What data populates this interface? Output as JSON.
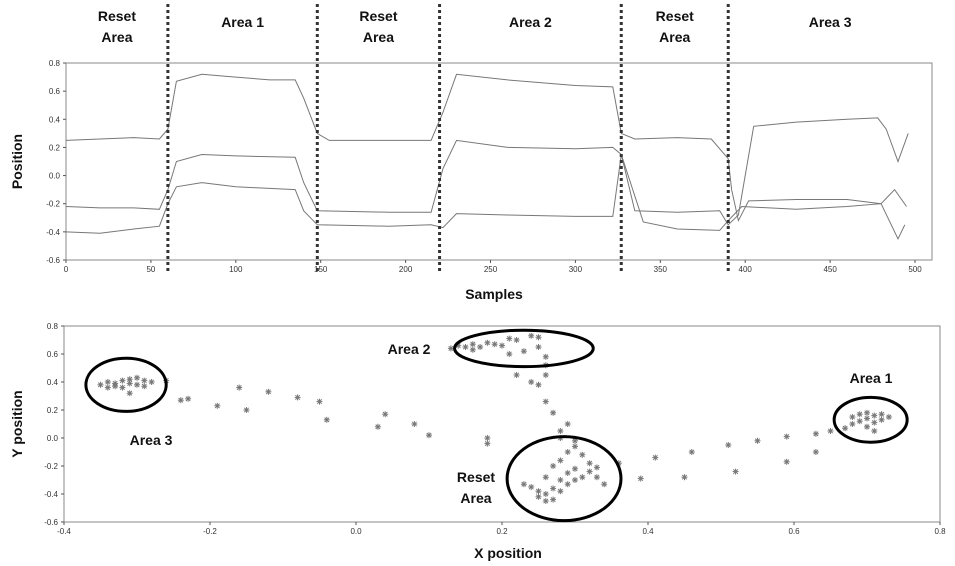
{
  "chart_data": [
    {
      "type": "line",
      "xlabel": "Samples",
      "ylabel": "Position",
      "xlim": [
        0,
        510
      ],
      "ylim": [
        -0.6,
        0.8
      ],
      "x_ticks": [
        "0",
        "50",
        "100",
        "150",
        "200",
        "250",
        "300",
        "350",
        "400",
        "450",
        "500"
      ],
      "y_ticks": [
        "0.8",
        "0.6",
        "0.4",
        "0.2",
        "0.0",
        "-0.2",
        "-0.4",
        "-0.6"
      ],
      "grid": false,
      "dividers": [
        60,
        148,
        220,
        327,
        390
      ],
      "segments": [
        {
          "label": "Reset\nArea",
          "from": 0,
          "to": 60
        },
        {
          "label": "Area 1",
          "from": 60,
          "to": 148
        },
        {
          "label": "Reset\nArea",
          "from": 148,
          "to": 220
        },
        {
          "label": "Area 2",
          "from": 220,
          "to": 327
        },
        {
          "label": "Reset\nArea",
          "from": 327,
          "to": 390
        },
        {
          "label": "Area 3",
          "from": 390,
          "to": 510
        }
      ],
      "series": [
        {
          "points": [
            [
              0,
              0.25
            ],
            [
              20,
              0.26
            ],
            [
              40,
              0.27
            ],
            [
              55,
              0.26
            ],
            [
              60,
              0.33
            ],
            [
              65,
              0.67
            ],
            [
              80,
              0.72
            ],
            [
              100,
              0.7
            ],
            [
              120,
              0.68
            ],
            [
              135,
              0.68
            ],
            [
              140,
              0.55
            ],
            [
              148,
              0.3
            ],
            [
              155,
              0.25
            ],
            [
              190,
              0.25
            ],
            [
              215,
              0.25
            ],
            [
              222,
              0.45
            ],
            [
              230,
              0.72
            ],
            [
              260,
              0.68
            ],
            [
              300,
              0.64
            ],
            [
              322,
              0.63
            ],
            [
              327,
              0.3
            ],
            [
              335,
              0.26
            ],
            [
              360,
              0.27
            ],
            [
              380,
              0.26
            ],
            [
              390,
              0.12
            ],
            [
              392,
              -0.1
            ],
            [
              396,
              -0.32
            ],
            [
              402,
              -0.18
            ],
            [
              430,
              -0.17
            ],
            [
              460,
              -0.17
            ],
            [
              480,
              -0.2
            ],
            [
              490,
              -0.45
            ],
            [
              494,
              -0.35
            ]
          ]
        },
        {
          "points": [
            [
              0,
              -0.22
            ],
            [
              20,
              -0.23
            ],
            [
              40,
              -0.23
            ],
            [
              55,
              -0.24
            ],
            [
              60,
              -0.1
            ],
            [
              65,
              0.1
            ],
            [
              80,
              0.15
            ],
            [
              100,
              0.14
            ],
            [
              135,
              0.13
            ],
            [
              140,
              -0.05
            ],
            [
              148,
              -0.25
            ],
            [
              190,
              -0.26
            ],
            [
              215,
              -0.26
            ],
            [
              222,
              0.05
            ],
            [
              230,
              0.25
            ],
            [
              260,
              0.2
            ],
            [
              300,
              0.19
            ],
            [
              322,
              0.2
            ],
            [
              327,
              0.15
            ],
            [
              335,
              -0.25
            ],
            [
              360,
              -0.26
            ],
            [
              385,
              -0.25
            ],
            [
              390,
              -0.35
            ],
            [
              396,
              -0.28
            ],
            [
              405,
              0.35
            ],
            [
              430,
              0.38
            ],
            [
              460,
              0.4
            ],
            [
              478,
              0.41
            ],
            [
              483,
              0.33
            ],
            [
              490,
              0.1
            ],
            [
              496,
              0.3
            ]
          ]
        },
        {
          "points": [
            [
              0,
              -0.4
            ],
            [
              20,
              -0.41
            ],
            [
              40,
              -0.38
            ],
            [
              55,
              -0.36
            ],
            [
              60,
              -0.2
            ],
            [
              65,
              -0.08
            ],
            [
              80,
              -0.05
            ],
            [
              100,
              -0.08
            ],
            [
              135,
              -0.1
            ],
            [
              140,
              -0.25
            ],
            [
              148,
              -0.35
            ],
            [
              190,
              -0.36
            ],
            [
              215,
              -0.35
            ],
            [
              222,
              -0.37
            ],
            [
              230,
              -0.27
            ],
            [
              260,
              -0.28
            ],
            [
              300,
              -0.29
            ],
            [
              322,
              -0.29
            ],
            [
              327,
              0.15
            ],
            [
              340,
              -0.33
            ],
            [
              360,
              -0.38
            ],
            [
              385,
              -0.39
            ],
            [
              390,
              -0.32
            ],
            [
              398,
              -0.22
            ],
            [
              430,
              -0.24
            ],
            [
              460,
              -0.22
            ],
            [
              480,
              -0.2
            ],
            [
              488,
              -0.1
            ],
            [
              495,
              -0.22
            ]
          ]
        }
      ]
    },
    {
      "type": "scatter",
      "xlabel": "X position",
      "ylabel": "Y position",
      "xlim": [
        -0.4,
        0.8
      ],
      "ylim": [
        -0.6,
        0.8
      ],
      "x_ticks": [
        "-0.4",
        "-0.2",
        "0.0",
        "0.2",
        "0.4",
        "0.6",
        "0.8"
      ],
      "y_ticks": [
        "0.8",
        "0.6",
        "0.4",
        "0.2",
        "0.0",
        "-0.2",
        "-0.4",
        "-0.6"
      ],
      "grid": false,
      "annotations": [
        {
          "label": "Area 2",
          "ellipse": {
            "cx": 0.23,
            "cy": 0.64,
            "rx": 0.095,
            "ry": 0.13
          }
        },
        {
          "label": "Area 3",
          "ellipse": {
            "cx": -0.315,
            "cy": 0.38,
            "rx": 0.055,
            "ry": 0.19
          }
        },
        {
          "label": "Area 1",
          "ellipse": {
            "cx": 0.705,
            "cy": 0.13,
            "rx": 0.05,
            "ry": 0.16
          }
        },
        {
          "label": "Reset\nArea",
          "ellipse": {
            "cx": 0.285,
            "cy": -0.29,
            "rx": 0.078,
            "ry": 0.3
          }
        }
      ],
      "points": [
        [
          -0.35,
          0.38
        ],
        [
          -0.34,
          0.4
        ],
        [
          -0.33,
          0.39
        ],
        [
          -0.33,
          0.37
        ],
        [
          -0.32,
          0.41
        ],
        [
          -0.31,
          0.42
        ],
        [
          -0.31,
          0.39
        ],
        [
          -0.3,
          0.43
        ],
        [
          -0.3,
          0.38
        ],
        [
          -0.29,
          0.41
        ],
        [
          -0.28,
          0.4
        ],
        [
          -0.34,
          0.36
        ],
        [
          -0.32,
          0.36
        ],
        [
          -0.29,
          0.37
        ],
        [
          -0.26,
          0.41
        ],
        [
          -0.31,
          0.32
        ],
        [
          -0.24,
          0.27
        ],
        [
          -0.23,
          0.28
        ],
        [
          -0.19,
          0.23
        ],
        [
          -0.16,
          0.36
        ],
        [
          -0.15,
          0.2
        ],
        [
          -0.12,
          0.33
        ],
        [
          -0.08,
          0.29
        ],
        [
          -0.05,
          0.26
        ],
        [
          -0.04,
          0.13
        ],
        [
          0.03,
          0.08
        ],
        [
          0.04,
          0.17
        ],
        [
          0.08,
          0.1
        ],
        [
          0.1,
          0.02
        ],
        [
          0.18,
          0.0
        ],
        [
          0.18,
          -0.04
        ],
        [
          0.13,
          0.64
        ],
        [
          0.14,
          0.66
        ],
        [
          0.15,
          0.65
        ],
        [
          0.16,
          0.67
        ],
        [
          0.16,
          0.63
        ],
        [
          0.17,
          0.65
        ],
        [
          0.18,
          0.68
        ],
        [
          0.19,
          0.67
        ],
        [
          0.2,
          0.66
        ],
        [
          0.21,
          0.71
        ],
        [
          0.22,
          0.7
        ],
        [
          0.24,
          0.73
        ],
        [
          0.25,
          0.72
        ],
        [
          0.21,
          0.6
        ],
        [
          0.23,
          0.62
        ],
        [
          0.25,
          0.65
        ],
        [
          0.26,
          0.58
        ],
        [
          0.26,
          0.52
        ],
        [
          0.26,
          0.45
        ],
        [
          0.25,
          0.38
        ],
        [
          0.22,
          0.45
        ],
        [
          0.24,
          0.4
        ],
        [
          0.26,
          0.26
        ],
        [
          0.27,
          0.18
        ],
        [
          0.29,
          0.1
        ],
        [
          0.28,
          0.05
        ],
        [
          0.28,
          0.0
        ],
        [
          0.3,
          -0.02
        ],
        [
          0.23,
          -0.33
        ],
        [
          0.24,
          -0.35
        ],
        [
          0.25,
          -0.38
        ],
        [
          0.25,
          -0.42
        ],
        [
          0.26,
          -0.4
        ],
        [
          0.26,
          -0.45
        ],
        [
          0.27,
          -0.36
        ],
        [
          0.27,
          -0.44
        ],
        [
          0.28,
          -0.3
        ],
        [
          0.28,
          -0.38
        ],
        [
          0.29,
          -0.33
        ],
        [
          0.29,
          -0.25
        ],
        [
          0.3,
          -0.3
        ],
        [
          0.3,
          -0.22
        ],
        [
          0.31,
          -0.28
        ],
        [
          0.32,
          -0.24
        ],
        [
          0.33,
          -0.21
        ],
        [
          0.27,
          -0.2
        ],
        [
          0.28,
          -0.16
        ],
        [
          0.29,
          -0.1
        ],
        [
          0.3,
          -0.06
        ],
        [
          0.31,
          -0.12
        ],
        [
          0.32,
          -0.18
        ],
        [
          0.33,
          -0.28
        ],
        [
          0.34,
          -0.33
        ],
        [
          0.26,
          -0.28
        ],
        [
          0.36,
          -0.18
        ],
        [
          0.39,
          -0.29
        ],
        [
          0.41,
          -0.14
        ],
        [
          0.45,
          -0.28
        ],
        [
          0.46,
          -0.1
        ],
        [
          0.51,
          -0.05
        ],
        [
          0.52,
          -0.24
        ],
        [
          0.55,
          -0.02
        ],
        [
          0.59,
          -0.17
        ],
        [
          0.59,
          0.01
        ],
        [
          0.63,
          -0.1
        ],
        [
          0.63,
          0.03
        ],
        [
          0.65,
          0.05
        ],
        [
          0.67,
          0.07
        ],
        [
          0.68,
          0.1
        ],
        [
          0.68,
          0.15
        ],
        [
          0.69,
          0.12
        ],
        [
          0.69,
          0.17
        ],
        [
          0.7,
          0.14
        ],
        [
          0.7,
          0.18
        ],
        [
          0.71,
          0.16
        ],
        [
          0.71,
          0.11
        ],
        [
          0.72,
          0.13
        ],
        [
          0.72,
          0.17
        ],
        [
          0.73,
          0.15
        ],
        [
          0.7,
          0.08
        ],
        [
          0.71,
          0.05
        ]
      ]
    }
  ]
}
